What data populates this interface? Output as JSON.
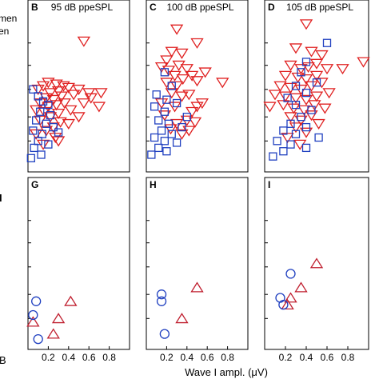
{
  "figure": {
    "xlabel": "Wave I ampl. (μV)",
    "left_clip_texts": [
      "men",
      "en"
    ],
    "left_clip_letters": [
      "I",
      "B"
    ]
  },
  "chart_data": [
    {
      "id": "B",
      "type": "scatter",
      "title": "95 dB ppeSPL",
      "panel_letter": "B",
      "xlim": [
        0,
        1.0
      ],
      "ylim": [
        0,
        10
      ],
      "xticks": [],
      "xticklabels": [],
      "series": [
        {
          "marker": "triangle-down",
          "color": "#e02020",
          "points": [
            [
              0.55,
              7.6
            ],
            [
              0.15,
              5.0
            ],
            [
              0.2,
              5.2
            ],
            [
              0.28,
              5.1
            ],
            [
              0.35,
              5.0
            ],
            [
              0.1,
              4.8
            ],
            [
              0.22,
              4.6
            ],
            [
              0.3,
              4.7
            ],
            [
              0.4,
              4.9
            ],
            [
              0.18,
              4.3
            ],
            [
              0.25,
              4.2
            ],
            [
              0.33,
              4.4
            ],
            [
              0.45,
              4.5
            ],
            [
              0.5,
              4.8
            ],
            [
              0.12,
              4.0
            ],
            [
              0.2,
              3.8
            ],
            [
              0.28,
              3.9
            ],
            [
              0.36,
              4.0
            ],
            [
              0.08,
              3.6
            ],
            [
              0.16,
              3.5
            ],
            [
              0.3,
              3.4
            ],
            [
              0.42,
              3.6
            ],
            [
              0.55,
              4.0
            ],
            [
              0.6,
              4.6
            ],
            [
              0.7,
              3.8
            ],
            [
              0.22,
              3.2
            ],
            [
              0.12,
              3.0
            ],
            [
              0.32,
              2.9
            ],
            [
              0.25,
              2.6
            ],
            [
              0.4,
              2.8
            ],
            [
              0.5,
              3.2
            ],
            [
              0.18,
              2.4
            ],
            [
              0.08,
              2.2
            ],
            [
              0.62,
              4.3
            ],
            [
              0.72,
              4.6
            ],
            [
              0.15,
              1.6
            ],
            [
              0.27,
              2.0
            ],
            [
              0.3,
              1.8
            ]
          ]
        },
        {
          "marker": "square",
          "color": "#2040c0",
          "points": [
            [
              0.05,
              4.8
            ],
            [
              0.1,
              4.4
            ],
            [
              0.15,
              4.1
            ],
            [
              0.2,
              3.9
            ],
            [
              0.12,
              3.5
            ],
            [
              0.22,
              3.3
            ],
            [
              0.08,
              3.0
            ],
            [
              0.18,
              2.8
            ],
            [
              0.25,
              2.6
            ],
            [
              0.05,
              2.4
            ],
            [
              0.14,
              2.2
            ],
            [
              0.3,
              2.3
            ],
            [
              0.1,
              1.8
            ],
            [
              0.06,
              1.4
            ],
            [
              0.2,
              1.6
            ],
            [
              0.03,
              0.8
            ],
            [
              0.13,
              1.0
            ]
          ]
        }
      ]
    },
    {
      "id": "C",
      "type": "scatter",
      "title": "100 dB ppeSPL",
      "panel_letter": "C",
      "xlim": [
        0,
        1.0
      ],
      "ylim": [
        0,
        10
      ],
      "xticks": [],
      "xticklabels": [],
      "series": [
        {
          "marker": "triangle-down",
          "color": "#e02020",
          "points": [
            [
              0.3,
              8.3
            ],
            [
              0.25,
              7.0
            ],
            [
              0.35,
              6.9
            ],
            [
              0.5,
              7.5
            ],
            [
              0.2,
              6.5
            ],
            [
              0.15,
              6.1
            ],
            [
              0.22,
              5.9
            ],
            [
              0.32,
              6.2
            ],
            [
              0.4,
              6.0
            ],
            [
              0.28,
              5.6
            ],
            [
              0.36,
              5.4
            ],
            [
              0.45,
              5.6
            ],
            [
              0.2,
              5.2
            ],
            [
              0.3,
              5.0
            ],
            [
              0.5,
              5.3
            ],
            [
              0.58,
              5.8
            ],
            [
              0.75,
              5.2
            ],
            [
              0.25,
              4.6
            ],
            [
              0.35,
              4.4
            ],
            [
              0.42,
              4.5
            ],
            [
              0.55,
              4.0
            ],
            [
              0.15,
              4.0
            ],
            [
              0.28,
              3.8
            ],
            [
              0.45,
              3.5
            ],
            [
              0.5,
              3.8
            ],
            [
              0.18,
              3.3
            ],
            [
              0.4,
              3.0
            ],
            [
              0.3,
              2.8
            ],
            [
              0.24,
              2.5
            ],
            [
              0.48,
              2.9
            ],
            [
              0.35,
              2.2
            ],
            [
              0.42,
              2.4
            ]
          ]
        },
        {
          "marker": "square",
          "color": "#2040c0",
          "points": [
            [
              0.18,
              5.8
            ],
            [
              0.25,
              5.0
            ],
            [
              0.1,
              4.5
            ],
            [
              0.2,
              4.2
            ],
            [
              0.3,
              4.0
            ],
            [
              0.08,
              3.8
            ],
            [
              0.18,
              3.5
            ],
            [
              0.12,
              3.0
            ],
            [
              0.22,
              2.8
            ],
            [
              0.35,
              2.6
            ],
            [
              0.15,
              2.4
            ],
            [
              0.25,
              2.2
            ],
            [
              0.08,
              2.0
            ],
            [
              0.18,
              1.8
            ],
            [
              0.3,
              1.7
            ],
            [
              0.12,
              1.4
            ],
            [
              0.2,
              1.2
            ],
            [
              0.05,
              1.0
            ],
            [
              0.4,
              3.2
            ]
          ]
        }
      ]
    },
    {
      "id": "D",
      "type": "scatter",
      "title": "105 dB ppeSPL",
      "panel_letter": "D",
      "xlim": [
        0,
        1.0
      ],
      "ylim": [
        0,
        10
      ],
      "xticks": [],
      "xticklabels": [],
      "series": [
        {
          "marker": "triangle-down",
          "color": "#e02020",
          "points": [
            [
              0.4,
              8.6
            ],
            [
              0.3,
              7.2
            ],
            [
              0.45,
              7.0
            ],
            [
              0.55,
              6.8
            ],
            [
              0.95,
              6.4
            ],
            [
              0.25,
              6.2
            ],
            [
              0.35,
              6.0
            ],
            [
              0.42,
              6.1
            ],
            [
              0.5,
              6.3
            ],
            [
              0.6,
              6.0
            ],
            [
              0.75,
              6.0
            ],
            [
              0.2,
              5.6
            ],
            [
              0.32,
              5.5
            ],
            [
              0.4,
              5.4
            ],
            [
              0.5,
              5.6
            ],
            [
              0.15,
              5.0
            ],
            [
              0.25,
              4.9
            ],
            [
              0.35,
              4.8
            ],
            [
              0.45,
              5.0
            ],
            [
              0.55,
              5.2
            ],
            [
              0.1,
              4.5
            ],
            [
              0.2,
              4.4
            ],
            [
              0.3,
              4.3
            ],
            [
              0.4,
              4.2
            ],
            [
              0.5,
              4.4
            ],
            [
              0.62,
              4.6
            ],
            [
              0.05,
              3.8
            ],
            [
              0.18,
              3.9
            ],
            [
              0.28,
              3.7
            ],
            [
              0.38,
              3.6
            ],
            [
              0.48,
              3.9
            ],
            [
              0.58,
              3.7
            ],
            [
              0.25,
              3.2
            ],
            [
              0.35,
              3.0
            ],
            [
              0.45,
              3.3
            ],
            [
              0.3,
              2.6
            ],
            [
              0.4,
              2.3
            ],
            [
              0.22,
              2.0
            ],
            [
              0.52,
              2.8
            ],
            [
              0.34,
              1.6
            ]
          ]
        },
        {
          "marker": "square",
          "color": "#2040c0",
          "points": [
            [
              0.6,
              7.5
            ],
            [
              0.4,
              6.4
            ],
            [
              0.35,
              5.8
            ],
            [
              0.5,
              5.2
            ],
            [
              0.3,
              5.0
            ],
            [
              0.4,
              4.6
            ],
            [
              0.22,
              4.3
            ],
            [
              0.3,
              3.9
            ],
            [
              0.45,
              3.6
            ],
            [
              0.35,
              3.2
            ],
            [
              0.25,
              2.8
            ],
            [
              0.4,
              2.6
            ],
            [
              0.18,
              2.4
            ],
            [
              0.3,
              2.2
            ],
            [
              0.52,
              2.0
            ],
            [
              0.12,
              1.8
            ],
            [
              0.25,
              1.6
            ],
            [
              0.4,
              1.4
            ],
            [
              0.18,
              1.2
            ],
            [
              0.08,
              0.9
            ]
          ]
        }
      ]
    },
    {
      "id": "G",
      "type": "scatter",
      "title": "",
      "panel_letter": "G",
      "xlim": [
        0,
        1.0
      ],
      "ylim": [
        0,
        10
      ],
      "xticks": [
        0.2,
        0.4,
        0.6,
        0.8
      ],
      "xticklabels": [
        "0.2",
        "0.4",
        "0.6",
        "0.8"
      ],
      "series": [
        {
          "marker": "triangle-up",
          "color": "#c02030",
          "points": [
            [
              0.42,
              2.8
            ],
            [
              0.3,
              1.8
            ],
            [
              0.05,
              1.6
            ],
            [
              0.25,
              0.9
            ]
          ]
        },
        {
          "marker": "circle",
          "color": "#2040c0",
          "points": [
            [
              0.08,
              2.8
            ],
            [
              0.05,
              2.0
            ],
            [
              0.1,
              0.6
            ]
          ]
        }
      ]
    },
    {
      "id": "H",
      "type": "scatter",
      "title": "",
      "panel_letter": "H",
      "xlim": [
        0,
        1.0
      ],
      "ylim": [
        0,
        10
      ],
      "xticks": [
        0.2,
        0.4,
        0.6,
        0.8
      ],
      "xticklabels": [
        "0.2",
        "0.4",
        "0.6",
        "0.8"
      ],
      "series": [
        {
          "marker": "triangle-up",
          "color": "#c02030",
          "points": [
            [
              0.5,
              3.6
            ],
            [
              0.35,
              1.8
            ]
          ]
        },
        {
          "marker": "circle",
          "color": "#2040c0",
          "points": [
            [
              0.15,
              3.2
            ],
            [
              0.15,
              2.8
            ],
            [
              0.18,
              0.9
            ]
          ]
        }
      ]
    },
    {
      "id": "I",
      "type": "scatter",
      "title": "",
      "panel_letter": "I",
      "xlim": [
        0,
        1.0
      ],
      "ylim": [
        0,
        10
      ],
      "xticks": [
        0.2,
        0.4,
        0.6,
        0.8
      ],
      "xticklabels": [
        "0.2",
        "0.4",
        "0.6",
        "0.8"
      ],
      "series": [
        {
          "marker": "triangle-up",
          "color": "#c02030",
          "points": [
            [
              0.5,
              5.0
            ],
            [
              0.35,
              3.6
            ],
            [
              0.25,
              3.0
            ],
            [
              0.22,
              2.6
            ]
          ]
        },
        {
          "marker": "circle",
          "color": "#2040c0",
          "points": [
            [
              0.25,
              4.4
            ],
            [
              0.15,
              3.0
            ],
            [
              0.18,
              2.6
            ]
          ]
        }
      ]
    }
  ]
}
